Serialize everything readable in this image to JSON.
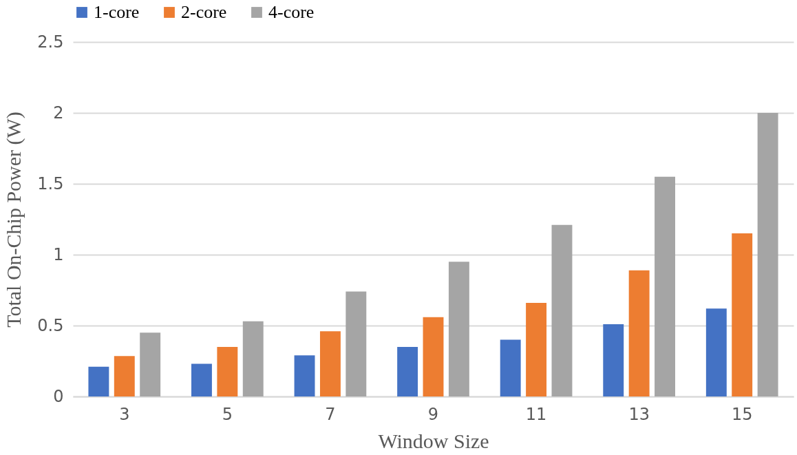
{
  "chart_data": {
    "type": "bar",
    "xlabel": "Window Size",
    "ylabel": "Total On-Chip Power (W)",
    "categories": [
      "3",
      "5",
      "7",
      "9",
      "11",
      "13",
      "15"
    ],
    "series": [
      {
        "name": "1-core",
        "color": "#4472c4",
        "values": [
          0.21,
          0.23,
          0.29,
          0.35,
          0.4,
          0.51,
          0.62
        ]
      },
      {
        "name": "2-core",
        "color": "#ed7d31",
        "values": [
          0.285,
          0.35,
          0.46,
          0.56,
          0.66,
          0.89,
          1.15
        ]
      },
      {
        "name": "4-core",
        "color": "#a5a5a5",
        "values": [
          0.45,
          0.53,
          0.74,
          0.95,
          1.21,
          1.55,
          2.0
        ]
      }
    ],
    "ylim": [
      0,
      2.5
    ],
    "yticks": [
      0,
      0.5,
      1,
      1.5,
      2,
      2.5
    ],
    "grid": "y",
    "legend": "top"
  }
}
